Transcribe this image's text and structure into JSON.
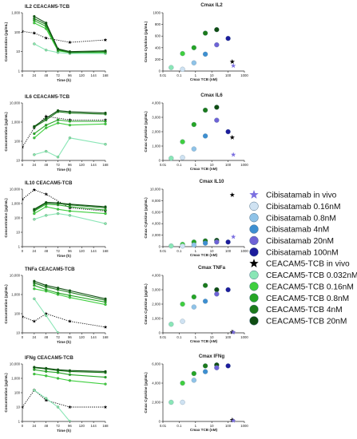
{
  "figure": {
    "legend": [
      {
        "label": "Cibisatamab in vivo",
        "marker": "star",
        "color": "#7b6fe0"
      },
      {
        "label": "Cibisatamab 0.16nM",
        "marker": "circle",
        "color": "#cfe2f2"
      },
      {
        "label": "Cibisatamab 0.8nM",
        "marker": "circle",
        "color": "#8fc3e8"
      },
      {
        "label": "Cibisatamab 4nM",
        "marker": "circle",
        "color": "#3d8fd1"
      },
      {
        "label": "Cibisatamab 20nM",
        "marker": "circle",
        "color": "#6e62d6"
      },
      {
        "label": "Cibisatamab 100nM",
        "marker": "circle",
        "color": "#1c1c9c"
      },
      {
        "label": "CEACAM5-TCB in vivo",
        "marker": "star",
        "color": "#000000"
      },
      {
        "label": "CEACAM5-TCB 0.032nM",
        "marker": "circle",
        "color": "#8ae6b6"
      },
      {
        "label": "CEACAM5-TCB 0.16nM",
        "marker": "circle",
        "color": "#3fcf3f"
      },
      {
        "label": "CEACAM5-TCB 0.8nM",
        "marker": "circle",
        "color": "#25a525"
      },
      {
        "label": "CEACAM5-TCB 4nM",
        "marker": "circle",
        "color": "#1b7a1b"
      },
      {
        "label": "CEACAM5-TCB 20nM",
        "marker": "circle",
        "color": "#0f4d12"
      }
    ]
  },
  "chart_data": [
    {
      "type": "line",
      "title": "IL2 CEACAM5-TCB",
      "xlabel": "Time (h)",
      "ylabel": "Concentration (pg/mL)",
      "xlim": [
        0,
        168
      ],
      "xticks": [
        0,
        24,
        48,
        72,
        96,
        120,
        144,
        168
      ],
      "ylim": [
        1,
        1000
      ],
      "yscale": "log",
      "yticks": [
        1,
        10,
        100,
        1000
      ],
      "x": [
        24,
        48,
        72,
        96,
        168
      ],
      "series": [
        {
          "color": "#8ae6b6",
          "values": [
            25,
            12,
            9,
            8,
            8
          ]
        },
        {
          "color": "#3fcf3f",
          "values": [
            300,
            150,
            11,
            9,
            9
          ]
        },
        {
          "color": "#25a525",
          "values": [
            400,
            200,
            12,
            9,
            10
          ]
        },
        {
          "color": "#1b7a1b",
          "values": [
            500,
            250,
            13,
            9,
            10
          ]
        },
        {
          "color": "#0f4d12",
          "values": [
            650,
            300,
            14,
            10,
            11
          ]
        }
      ],
      "invivo": {
        "color": "#000000",
        "x": [
          0,
          24,
          48,
          96,
          168
        ],
        "values": [
          110,
          90,
          50,
          30,
          40
        ]
      }
    },
    {
      "type": "line",
      "title": "IL6 CEACAM5-TCB",
      "xlabel": "Time (h)",
      "ylabel": "Concentration (pg/mL)",
      "xlim": [
        0,
        168
      ],
      "xticks": [
        0,
        24,
        48,
        72,
        96,
        120,
        144,
        168
      ],
      "ylim": [
        10,
        10000
      ],
      "yscale": "log",
      "yticks": [
        10,
        100,
        1000,
        10000
      ],
      "x": [
        24,
        48,
        72,
        96,
        168
      ],
      "series": [
        {
          "color": "#8ae6b6",
          "values": [
            20,
            30,
            15,
            150,
            70
          ]
        },
        {
          "color": "#3fcf3f",
          "values": [
            150,
            500,
            900,
            700,
            800
          ]
        },
        {
          "color": "#25a525",
          "values": [
            250,
            700,
            1300,
            1100,
            1100
          ]
        },
        {
          "color": "#1b7a1b",
          "values": [
            550,
            1300,
            3500,
            3000,
            2600
          ]
        },
        {
          "color": "#0f4d12",
          "values": [
            600,
            1600,
            4000,
            3500,
            3000
          ]
        }
      ],
      "invivo": {
        "color": "#000000",
        "x": [
          0,
          24,
          48,
          96,
          168
        ],
        "values": [
          50,
          500,
          2000,
          1300,
          1300
        ]
      }
    },
    {
      "type": "line",
      "title": "IL10 CEACAM5-TCB",
      "xlabel": "Time (h)",
      "ylabel": "Concentration (pg/mL)",
      "xlim": [
        0,
        168
      ],
      "xticks": [
        0,
        24,
        48,
        72,
        96,
        120,
        144,
        168
      ],
      "ylim": [
        1,
        10000
      ],
      "yscale": "log",
      "yticks": [
        1,
        10,
        100,
        1000,
        10000
      ],
      "x": [
        24,
        48,
        72,
        96,
        168
      ],
      "series": [
        {
          "color": "#8ae6b6",
          "values": [
            80,
            150,
            200,
            150,
            40
          ]
        },
        {
          "color": "#3fcf3f",
          "values": [
            200,
            600,
            400,
            300,
            200
          ]
        },
        {
          "color": "#25a525",
          "values": [
            300,
            900,
            800,
            600,
            350
          ]
        },
        {
          "color": "#1b7a1b",
          "values": [
            350,
            1100,
            1000,
            800,
            500
          ]
        },
        {
          "color": "#0f4d12",
          "values": [
            400,
            1200,
            1100,
            900,
            600
          ]
        }
      ],
      "invivo": {
        "color": "#000000",
        "x": [
          0,
          24,
          48,
          96,
          168
        ],
        "values": [
          2000,
          9000,
          4500,
          500,
          300
        ]
      }
    },
    {
      "type": "line",
      "title": "TNFa CEACAM5-TCB",
      "xlabel": "Time (h)",
      "ylabel": "Concentration (pg/mL)",
      "xlim": [
        0,
        168
      ],
      "xticks": [
        0,
        24,
        48,
        72,
        96,
        120,
        144,
        168
      ],
      "ylim": [
        10,
        10000
      ],
      "yscale": "log",
      "yticks": [
        10,
        100,
        1000,
        10000
      ],
      "x": [
        24,
        48,
        72,
        96,
        168
      ],
      "series": [
        {
          "color": "#8ae6b6",
          "values": [
            600,
            80,
            10,
            5,
            null
          ]
        },
        {
          "color": "#3fcf3f",
          "values": [
            2000,
            1500,
            1000,
            700,
            300
          ]
        },
        {
          "color": "#25a525",
          "values": [
            3000,
            1800,
            1200,
            900,
            400
          ]
        },
        {
          "color": "#1b7a1b",
          "values": [
            4000,
            2500,
            1800,
            1300,
            500
          ]
        },
        {
          "color": "#0f4d12",
          "values": [
            5000,
            3000,
            2200,
            1600,
            600
          ]
        }
      ],
      "invivo": {
        "color": "#000000",
        "x": [
          0,
          24,
          48,
          96,
          168
        ],
        "values": [
          70,
          40,
          100,
          40,
          20
        ]
      }
    },
    {
      "type": "line",
      "title": "IFNg CEACAM5-TCB",
      "xlabel": "Time (h)",
      "ylabel": "Concentration (pg/mL)",
      "xlim": [
        0,
        168
      ],
      "xticks": [
        0,
        24,
        48,
        72,
        96,
        120,
        144,
        168
      ],
      "ylim": [
        1,
        10000
      ],
      "yscale": "log",
      "yticks": [
        1,
        10,
        100,
        1000,
        10000
      ],
      "x": [
        24,
        48,
        72,
        96,
        168
      ],
      "series": [
        {
          "color": "#8ae6b6",
          "values": [
            150,
            40,
            10,
            1,
            null
          ]
        },
        {
          "color": "#3fcf3f",
          "values": [
            2000,
            1500,
            1000,
            700,
            400
          ]
        },
        {
          "color": "#25a525",
          "values": [
            4000,
            3000,
            2500,
            1800,
            1200
          ]
        },
        {
          "color": "#1b7a1b",
          "values": [
            5500,
            4500,
            3500,
            3000,
            2500
          ]
        },
        {
          "color": "#0f4d12",
          "values": [
            6000,
            5000,
            4000,
            3500,
            3000
          ]
        }
      ],
      "invivo": {
        "color": "#000000",
        "x": [
          0,
          24,
          48,
          96,
          168
        ],
        "values": [
          10,
          150,
          30,
          10,
          10
        ]
      }
    },
    {
      "type": "scatter",
      "title": "Cmax IL2",
      "xlabel": "Cmax TCB  (nM)",
      "ylabel": "Cmax Cytokine (pg/mL)",
      "xscale": "log",
      "xlim": [
        0.01,
        1000
      ],
      "xticks": [
        0.01,
        0.1,
        1,
        10,
        100,
        1000
      ],
      "xticklabels": [
        "0.01",
        "0.1",
        "1",
        "10",
        "100",
        "1000"
      ],
      "ylim": [
        0,
        1000
      ],
      "yticks": [
        0,
        200,
        400,
        600,
        800,
        1000
      ],
      "points": [
        {
          "x": 0.032,
          "y": 60,
          "color": "#8ae6b6"
        },
        {
          "x": 0.16,
          "y": 300,
          "color": "#3fcf3f"
        },
        {
          "x": 0.8,
          "y": 400,
          "color": "#25a525"
        },
        {
          "x": 4,
          "y": 650,
          "color": "#1b7a1b"
        },
        {
          "x": 20,
          "y": 710,
          "color": "#0f4d12"
        },
        {
          "x": 0.16,
          "y": 30,
          "color": "#cfe2f2"
        },
        {
          "x": 0.8,
          "y": 140,
          "color": "#8fc3e8"
        },
        {
          "x": 4,
          "y": 290,
          "color": "#3d8fd1"
        },
        {
          "x": 20,
          "y": 450,
          "color": "#6e62d6"
        },
        {
          "x": 100,
          "y": 560,
          "color": "#1c1c9c"
        },
        {
          "x": 180,
          "y": 160,
          "color": "#000000",
          "star": true
        },
        {
          "x": 210,
          "y": 90,
          "color": "#7b6fe0",
          "star": true
        }
      ]
    },
    {
      "type": "scatter",
      "title": "Cmax IL6",
      "xlabel": "Cmax TCB (nM)",
      "ylabel": "Cmax Cytokine (pg/mL)",
      "xscale": "log",
      "xlim": [
        0.01,
        1000
      ],
      "xticks": [
        0.01,
        0.1,
        1,
        10,
        100,
        1000
      ],
      "xticklabels": [
        "0.01",
        "0.1",
        "1",
        "10",
        "100",
        "1000"
      ],
      "ylim": [
        0,
        4000
      ],
      "yticks": [
        0,
        1000,
        2000,
        3000,
        4000
      ],
      "yticklabels": [
        "0",
        "1,000",
        "2,000",
        "3,000",
        "4,000"
      ],
      "points": [
        {
          "x": 0.032,
          "y": 150,
          "color": "#8ae6b6"
        },
        {
          "x": 0.16,
          "y": 1300,
          "color": "#3fcf3f"
        },
        {
          "x": 0.8,
          "y": 2500,
          "color": "#25a525"
        },
        {
          "x": 4,
          "y": 3500,
          "color": "#1b7a1b"
        },
        {
          "x": 20,
          "y": 3700,
          "color": "#0f4d12"
        },
        {
          "x": 0.16,
          "y": 200,
          "color": "#cfe2f2"
        },
        {
          "x": 0.8,
          "y": 800,
          "color": "#8fc3e8"
        },
        {
          "x": 4,
          "y": 1700,
          "color": "#3d8fd1"
        },
        {
          "x": 20,
          "y": 2800,
          "color": "#6e62d6"
        },
        {
          "x": 100,
          "y": 2000,
          "color": "#1c1c9c"
        },
        {
          "x": 180,
          "y": 1600,
          "color": "#000000",
          "star": true
        },
        {
          "x": 210,
          "y": 400,
          "color": "#7b6fe0",
          "star": true
        }
      ]
    },
    {
      "type": "scatter",
      "title": "Cmax IL10",
      "xlabel": "Cmax TCB (nM)",
      "ylabel": "Cmax Cytokine (pg/mL)",
      "xscale": "log",
      "xlim": [
        0.01,
        1000
      ],
      "xticks": [
        0.01,
        0.1,
        1,
        10,
        100,
        1000
      ],
      "xticklabels": [
        "0.01",
        "0.1",
        "1",
        "10",
        "100",
        "1000"
      ],
      "ylim": [
        0,
        10000
      ],
      "yticks": [
        0,
        2000,
        4000,
        6000,
        8000,
        10000
      ],
      "yticklabels": [
        "0",
        "2,000",
        "4,000",
        "6,000",
        "8,000",
        "10,000"
      ],
      "points": [
        {
          "x": 0.032,
          "y": 120,
          "color": "#8ae6b6"
        },
        {
          "x": 0.16,
          "y": 400,
          "color": "#3fcf3f"
        },
        {
          "x": 0.8,
          "y": 800,
          "color": "#25a525"
        },
        {
          "x": 4,
          "y": 1000,
          "color": "#1b7a1b"
        },
        {
          "x": 20,
          "y": 1100,
          "color": "#0f4d12"
        },
        {
          "x": 0.16,
          "y": 100,
          "color": "#cfe2f2"
        },
        {
          "x": 0.8,
          "y": 300,
          "color": "#8fc3e8"
        },
        {
          "x": 4,
          "y": 600,
          "color": "#3d8fd1"
        },
        {
          "x": 20,
          "y": 800,
          "color": "#6e62d6"
        },
        {
          "x": 100,
          "y": 800,
          "color": "#1c1c9c"
        },
        {
          "x": 180,
          "y": 9000,
          "color": "#000000",
          "star": true
        },
        {
          "x": 210,
          "y": 1700,
          "color": "#7b6fe0",
          "star": true
        }
      ]
    },
    {
      "type": "scatter",
      "title": "Cmax TNFa",
      "xlabel": "Cmax TCB (nM)",
      "ylabel": "Cmax Cytokine (pg/mL)",
      "xscale": "log",
      "xlim": [
        0.01,
        1000
      ],
      "xticks": [
        0.01,
        0.1,
        1,
        10,
        100,
        1000
      ],
      "xticklabels": [
        "0.01",
        "0.1",
        "1",
        "10",
        "100",
        "1000"
      ],
      "ylim": [
        0,
        4000
      ],
      "yticks": [
        0,
        1000,
        2000,
        3000,
        4000
      ],
      "yticklabels": [
        "0",
        "1,000",
        "2,000",
        "3,000",
        "4,000"
      ],
      "points": [
        {
          "x": 0.032,
          "y": 600,
          "color": "#8ae6b6"
        },
        {
          "x": 0.16,
          "y": 2000,
          "color": "#3fcf3f"
        },
        {
          "x": 0.8,
          "y": 2500,
          "color": "#25a525"
        },
        {
          "x": 4,
          "y": 3300,
          "color": "#1b7a1b"
        },
        {
          "x": 20,
          "y": 3000,
          "color": "#0f4d12"
        },
        {
          "x": 0.16,
          "y": 800,
          "color": "#cfe2f2"
        },
        {
          "x": 0.8,
          "y": 1800,
          "color": "#8fc3e8"
        },
        {
          "x": 4,
          "y": 2200,
          "color": "#3d8fd1"
        },
        {
          "x": 20,
          "y": 2700,
          "color": "#6e62d6"
        },
        {
          "x": 100,
          "y": 3000,
          "color": "#1c1c9c"
        },
        {
          "x": 180,
          "y": 60,
          "color": "#000000",
          "star": true
        },
        {
          "x": 210,
          "y": 40,
          "color": "#7b6fe0",
          "star": true
        }
      ]
    },
    {
      "type": "scatter",
      "title": "Cmax IFNg",
      "xlabel": "Cmax TCB (nM)",
      "ylabel": "Cmax Cytokine (pg/mL)",
      "xscale": "log",
      "xlim": [
        0.01,
        1000
      ],
      "xticks": [
        0.01,
        0.1,
        1,
        10,
        100,
        1000
      ],
      "xticklabels": [
        "0.01",
        "0.1",
        "1",
        "10",
        "100",
        "1000"
      ],
      "ylim": [
        0,
        6000
      ],
      "yticks": [
        0,
        2000,
        4000,
        6000
      ],
      "yticklabels": [
        "0",
        "2,000",
        "4,000",
        "6,000"
      ],
      "points": [
        {
          "x": 0.032,
          "y": 2000,
          "color": "#8ae6b6"
        },
        {
          "x": 0.16,
          "y": 4000,
          "color": "#3fcf3f"
        },
        {
          "x": 0.8,
          "y": 5000,
          "color": "#25a525"
        },
        {
          "x": 4,
          "y": 5800,
          "color": "#1b7a1b"
        },
        {
          "x": 20,
          "y": 5900,
          "color": "#0f4d12"
        },
        {
          "x": 0.16,
          "y": 2000,
          "color": "#cfe2f2"
        },
        {
          "x": 0.8,
          "y": 4300,
          "color": "#8fc3e8"
        },
        {
          "x": 4,
          "y": 5200,
          "color": "#3d8fd1"
        },
        {
          "x": 20,
          "y": 5600,
          "color": "#6e62d6"
        },
        {
          "x": 100,
          "y": 5800,
          "color": "#1c1c9c"
        },
        {
          "x": 180,
          "y": 150,
          "color": "#000000",
          "star": true
        },
        {
          "x": 210,
          "y": 80,
          "color": "#7b6fe0",
          "star": true
        }
      ]
    }
  ]
}
